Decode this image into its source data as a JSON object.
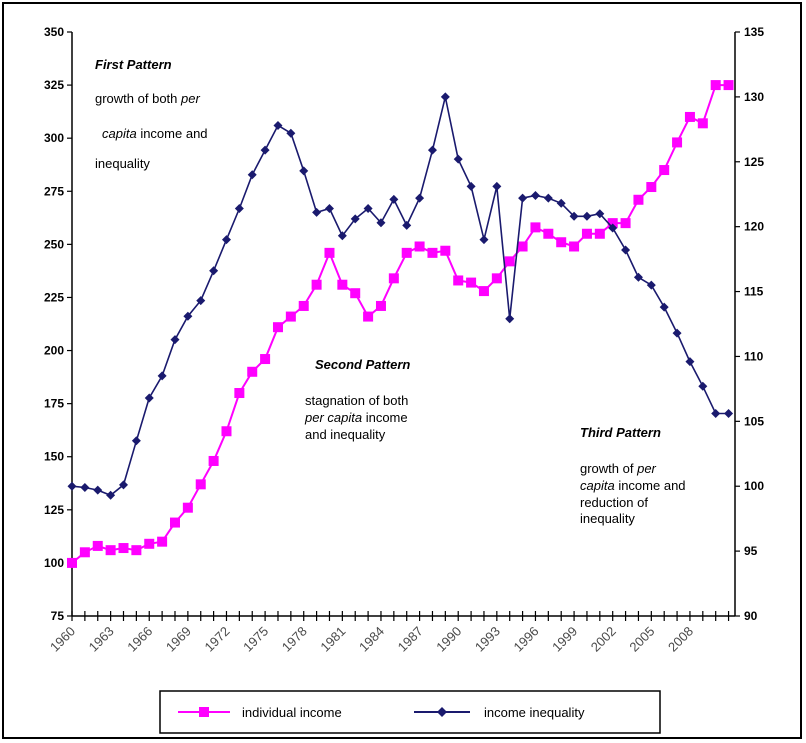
{
  "chart_data": {
    "type": "line",
    "title": "",
    "xlabel": "",
    "ylabel": "",
    "y_left": {
      "lim": [
        75,
        350
      ],
      "ticks": [
        75,
        100,
        125,
        150,
        175,
        200,
        225,
        250,
        275,
        300,
        325,
        350
      ]
    },
    "y_right": {
      "lim": [
        90,
        135
      ],
      "ticks": [
        90,
        95,
        100,
        105,
        110,
        115,
        120,
        125,
        130,
        135
      ]
    },
    "x_tick_labels": [
      "1960",
      "1963",
      "1966",
      "1969",
      "1972",
      "1975",
      "1978",
      "1981",
      "1984",
      "1987",
      "1990",
      "1993",
      "1996",
      "1999",
      "2002",
      "2005",
      "2008"
    ],
    "legend_position": "bottom",
    "grid": false,
    "series": [
      {
        "name": "individual income",
        "axis": "left",
        "color": "#ff00ff",
        "marker": "square",
        "x": [
          1960,
          1961,
          1962,
          1963,
          1964,
          1965,
          1966,
          1967,
          1968,
          1969,
          1970,
          1971,
          1972,
          1973,
          1974,
          1975,
          1976,
          1977,
          1978,
          1979,
          1980,
          1981,
          1982,
          1983,
          1984,
          1985,
          1986,
          1987,
          1988,
          1989,
          1990,
          1991,
          1992,
          1993,
          1994,
          1995,
          1996,
          1997,
          1998,
          1999,
          2000,
          2001,
          2002,
          2003,
          2004,
          2005,
          2006,
          2007,
          2008,
          2009,
          2010,
          2011
        ],
        "values": [
          100,
          105,
          108,
          106,
          107,
          106,
          109,
          110,
          119,
          126,
          137,
          148,
          162,
          180,
          190,
          196,
          211,
          216,
          221,
          231,
          246,
          231,
          227,
          216,
          221,
          234,
          246,
          249,
          246,
          247,
          233,
          232,
          228,
          234,
          242,
          249,
          258,
          255,
          251,
          249,
          255,
          255,
          260,
          260,
          271,
          277,
          285,
          298,
          310,
          307,
          325,
          325
        ]
      },
      {
        "name": "income inequality",
        "axis": "right",
        "color": "#1a1a6e",
        "marker": "diamond",
        "x": [
          1960,
          1961,
          1962,
          1963,
          1964,
          1965,
          1966,
          1967,
          1968,
          1969,
          1970,
          1971,
          1972,
          1973,
          1974,
          1975,
          1976,
          1977,
          1978,
          1979,
          1980,
          1981,
          1982,
          1983,
          1984,
          1985,
          1986,
          1987,
          1988,
          1989,
          1990,
          1991,
          1992,
          1993,
          1994,
          1995,
          1996,
          1997,
          1998,
          1999,
          2000,
          2001,
          2002,
          2003,
          2004,
          2005,
          2006,
          2007,
          2008,
          2009,
          2010,
          2011
        ],
        "values": [
          100,
          99.9,
          99.7,
          99.3,
          100.1,
          103.5,
          106.8,
          108.5,
          111.3,
          113.1,
          114.3,
          116.6,
          119.0,
          121.4,
          124.0,
          125.9,
          127.8,
          127.2,
          124.3,
          121.1,
          121.4,
          119.3,
          120.6,
          121.4,
          120.3,
          122.1,
          120.1,
          122.2,
          125.9,
          130.0,
          125.2,
          123.1,
          119.0,
          123.1,
          112.9,
          122.2,
          122.4,
          122.2,
          121.8,
          120.8,
          120.8,
          121.0,
          119.9,
          118.2,
          116.1,
          115.5,
          113.8,
          111.8,
          109.6,
          107.7,
          105.6,
          105.6
        ]
      }
    ]
  },
  "annotations": {
    "first": {
      "title": "First Pattern",
      "l1a": "growth of both ",
      "l1b": "per",
      "l2a": "capita",
      "l2b": " income and",
      "l3": "inequality"
    },
    "second": {
      "title": "Second Pattern",
      "l1": "stagnation of both",
      "l2a": "per  capita",
      "l2b": " income",
      "l3": "and inequality"
    },
    "third": {
      "title": "Third Pattern",
      "l1a": "growth of ",
      "l1b": "per",
      "l2a": "capita",
      "l2b": " income and",
      "l3": "reduction of",
      "l4": "inequality"
    }
  }
}
